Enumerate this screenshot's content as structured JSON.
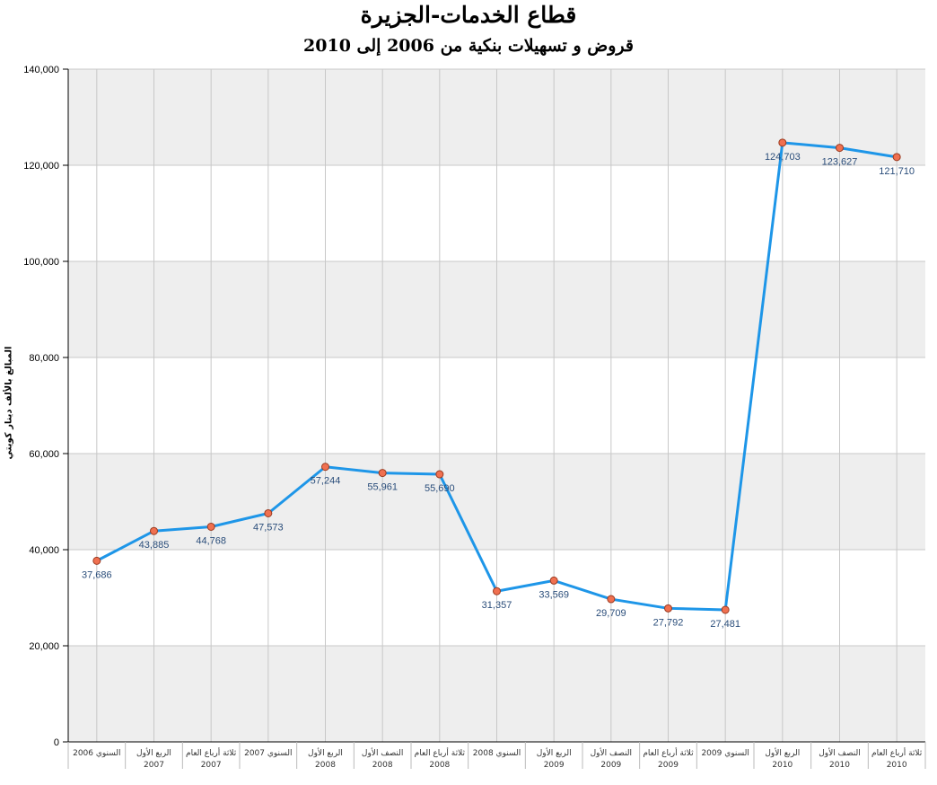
{
  "chart_data": {
    "type": "line",
    "title": "قطاع الخدمات-الجزيرة",
    "subtitle": "قروض و تسهيلات بنكية من 2006 إلى 2010",
    "ylabel": "المبالغ بالألف دينار كويتي",
    "xlabel": "",
    "ylim": [
      0,
      140000
    ],
    "yticks": [
      "0",
      "20,000",
      "40,000",
      "60,000",
      "80,000",
      "100,000",
      "120,000",
      "140,000"
    ],
    "grid": true,
    "categories": [
      {
        "line1": "السنوي 2006",
        "line2": ""
      },
      {
        "line1": "الربع الأول",
        "line2": "2007"
      },
      {
        "line1": "ثلاثة أرباع العام",
        "line2": "2007"
      },
      {
        "line1": "السنوي 2007",
        "line2": ""
      },
      {
        "line1": "الربع الأول",
        "line2": "2008"
      },
      {
        "line1": "النصف الأول",
        "line2": "2008"
      },
      {
        "line1": "ثلاثة أرباع العام",
        "line2": "2008"
      },
      {
        "line1": "السنوي 2008",
        "line2": ""
      },
      {
        "line1": "الربع الأول",
        "line2": "2009"
      },
      {
        "line1": "النصف الأول",
        "line2": "2009"
      },
      {
        "line1": "ثلاثة أرباع العام",
        "line2": "2009"
      },
      {
        "line1": "السنوي 2009",
        "line2": ""
      },
      {
        "line1": "الربع الأول",
        "line2": "2010"
      },
      {
        "line1": "النصف الأول",
        "line2": "2010"
      },
      {
        "line1": "ثلاثة أرباع العام",
        "line2": "2010"
      }
    ],
    "series": [
      {
        "values": [
          37686,
          43885,
          44768,
          47573,
          57244,
          55961,
          55690,
          31357,
          33569,
          29709,
          27792,
          27481,
          124703,
          123627,
          121710
        ],
        "labels": [
          "37,686",
          "43,885",
          "44,768",
          "47,573",
          "57,244",
          "55,961",
          "55,690",
          "31,357",
          "33,569",
          "29,709",
          "27,792",
          "27,481",
          "124,703",
          "123,627",
          "121,710"
        ]
      }
    ],
    "colors": {
      "line": "#1e96e8",
      "marker_fill": "#f07050",
      "marker_stroke": "#9a3a20",
      "band": "#eeeeee",
      "grid": "#c8c8c8"
    }
  }
}
